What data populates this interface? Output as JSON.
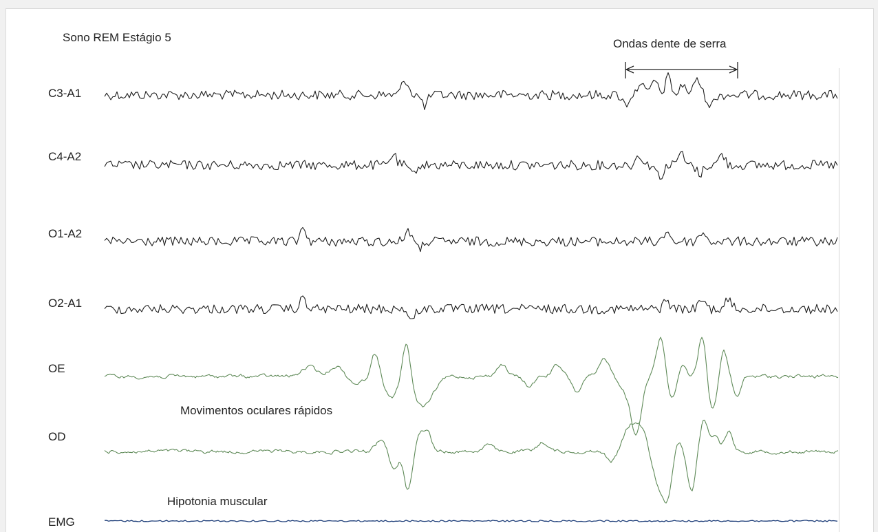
{
  "title": "Sono REM Estágio 5",
  "annotations": {
    "sawtooth": "Ondas dente de serra",
    "rem": "Movimentos oculares rápidos",
    "hypotonia": "Hipotonia muscular"
  },
  "channels": [
    {
      "label": "C3-A1",
      "color": "#1e1e1e"
    },
    {
      "label": "C4-A2",
      "color": "#1e1e1e"
    },
    {
      "label": "O1-A2",
      "color": "#1e1e1e"
    },
    {
      "label": "O2-A1",
      "color": "#1e1e1e"
    },
    {
      "label": "OE",
      "color": "#5f8a58"
    },
    {
      "label": "OD",
      "color": "#5f8a58"
    },
    {
      "label": "EMG",
      "color": "#1f3f7a"
    }
  ]
}
